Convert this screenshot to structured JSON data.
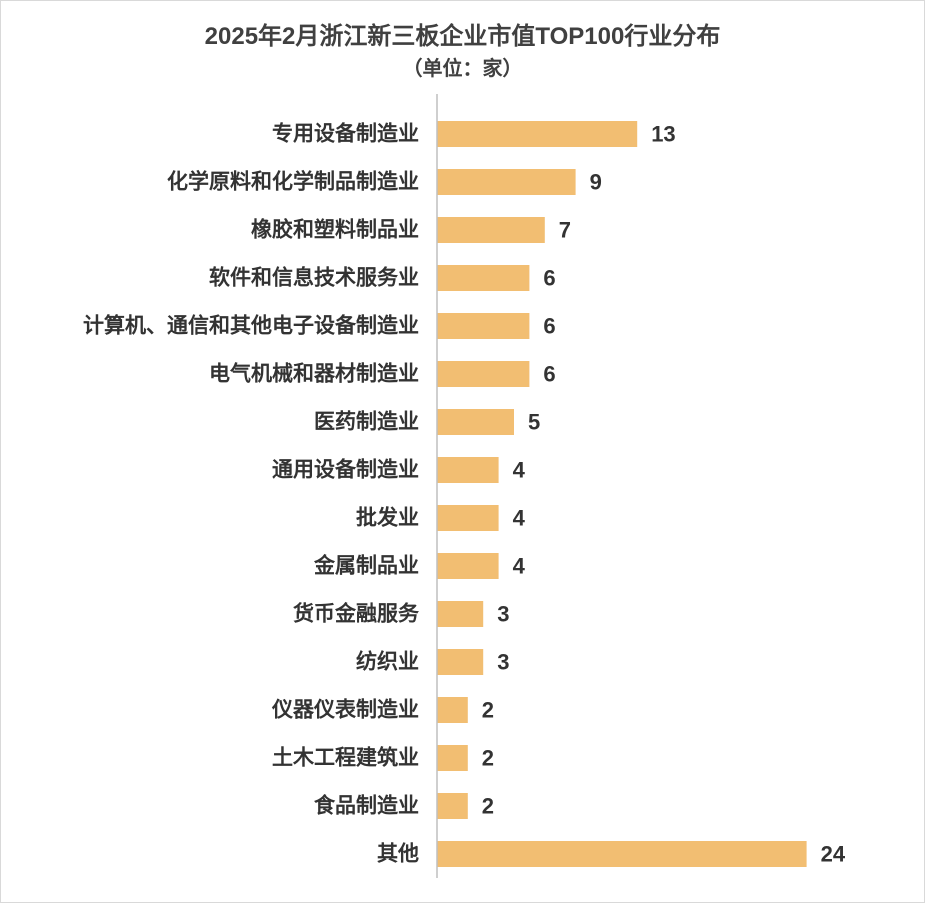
{
  "chart_data": {
    "type": "bar",
    "orientation": "horizontal",
    "title": "2025年2月浙江新三板企业市值TOP100行业分布",
    "subtitle": "（单位：家）",
    "categories": [
      "专用设备制造业",
      "化学原料和化学制品制造业",
      "橡胶和塑料制品业",
      "软件和信息技术服务业",
      "计算机、通信和其他电子设备制造业",
      "电气机械和器材制造业",
      "医药制造业",
      "通用设备制造业",
      "批发业",
      "金属制品业",
      "货币金融服务",
      "纺织业",
      "仪器仪表制造业",
      "土木工程建筑业",
      "食品制造业",
      "其他"
    ],
    "values": [
      13,
      9,
      7,
      6,
      6,
      6,
      5,
      4,
      4,
      4,
      3,
      3,
      2,
      2,
      2,
      24
    ],
    "data_labels": [
      "13",
      "9",
      "7",
      "6",
      "6",
      "6",
      "5",
      "4",
      "4",
      "4",
      "3",
      "3",
      "2",
      "2",
      "2",
      "24"
    ],
    "xlim": [
      0,
      26
    ],
    "grid": false,
    "legend": "none",
    "bar_color": "#F2BE72",
    "axis_color": "#BFBFBF"
  }
}
